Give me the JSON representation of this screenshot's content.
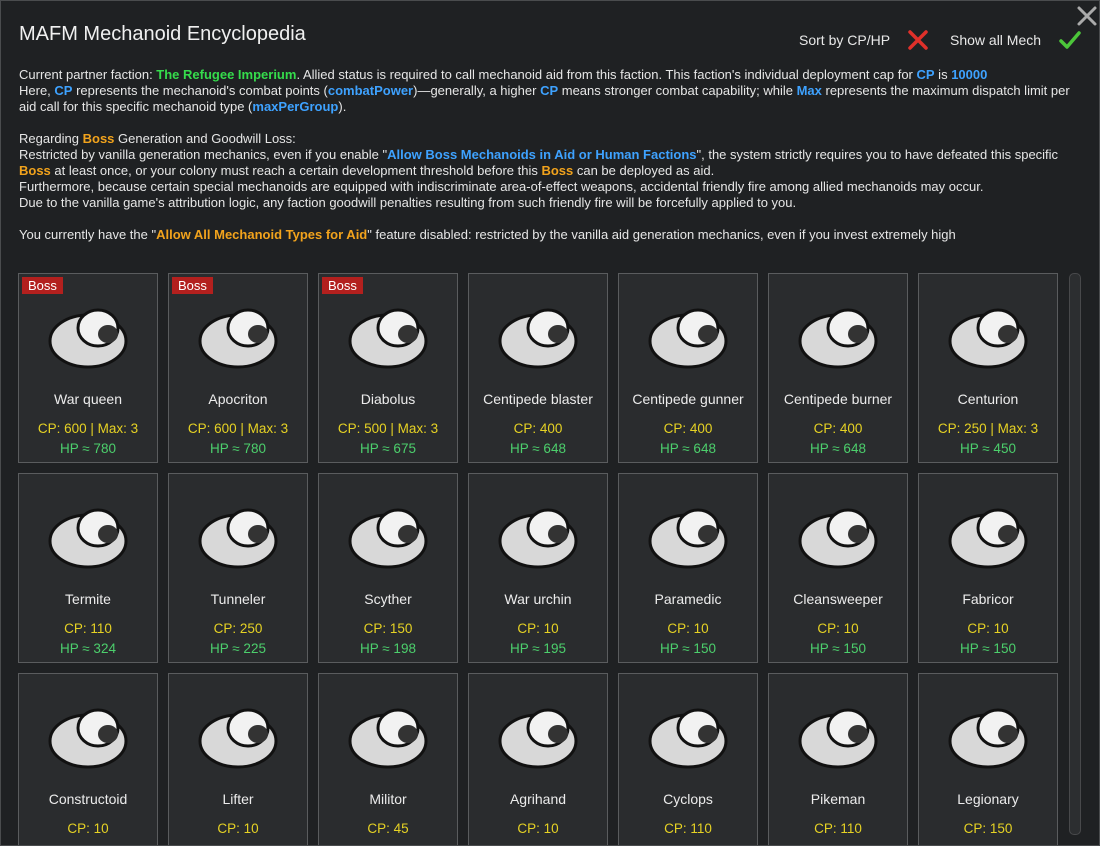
{
  "header": {
    "title": "MAFM Mechanoid Encyclopedia",
    "sort_button": "Sort by CP/HP",
    "show_all_button": "Show all Mech"
  },
  "paragraphs": [
    {
      "runs": [
        {
          "text": "Current partner faction: "
        },
        {
          "text": "The Refugee Imperium",
          "color": "#35dc4c"
        },
        {
          "text": ". Allied status is required to call mechanoid aid from this faction. This faction's individual deployment cap for "
        },
        {
          "text": "CP",
          "color": "#3ea2ff"
        },
        {
          "text": " is "
        },
        {
          "text": "10000",
          "color": "#3ea2ff"
        }
      ]
    },
    {
      "runs": [
        {
          "text": "Here, "
        },
        {
          "text": "CP",
          "color": "#3ea2ff"
        },
        {
          "text": " represents the mechanoid's combat points ("
        },
        {
          "text": "combatPower",
          "color": "#3ea2ff"
        },
        {
          "text": ")—generally, a higher "
        },
        {
          "text": "CP",
          "color": "#3ea2ff"
        },
        {
          "text": " means stronger combat capability; while "
        },
        {
          "text": "Max",
          "color": "#3ea2ff"
        },
        {
          "text": " represents the maximum dispatch limit per aid call for this specific mechanoid type ("
        },
        {
          "text": "maxPerGroup",
          "color": "#3ea2ff"
        },
        {
          "text": ")."
        }
      ]
    },
    {
      "gap": true,
      "runs": [
        {
          "text": "Regarding "
        },
        {
          "text": "Boss",
          "color": "#f2a31c"
        },
        {
          "text": " Generation and Goodwill Loss:"
        }
      ]
    },
    {
      "runs": [
        {
          "text": "Restricted by vanilla generation mechanics, even if you enable \""
        },
        {
          "text": "Allow Boss Mechanoids in Aid or Human Factions",
          "color": "#3ea2ff"
        },
        {
          "text": "\", the system strictly requires you to have defeated this specific "
        },
        {
          "text": "Boss",
          "color": "#f2a31c"
        },
        {
          "text": " at least once, or your colony must reach a certain development threshold before this "
        },
        {
          "text": "Boss",
          "color": "#f2a31c"
        },
        {
          "text": " can be deployed as aid."
        }
      ]
    },
    {
      "runs": [
        {
          "text": "Furthermore, because certain special mechanoids are equipped with indiscriminate area-of-effect weapons, accidental friendly fire among allied mechanoids may occur."
        }
      ]
    },
    {
      "runs": [
        {
          "text": "Due to the vanilla game's attribution logic, any faction goodwill penalties resulting from such friendly fire will be forcefully applied to you."
        }
      ]
    },
    {
      "gap": true,
      "nowrap": true,
      "runs": [
        {
          "text": "You currently have the \""
        },
        {
          "text": "Allow All Mechanoid Types for Aid",
          "color": "#f2a31c"
        },
        {
          "text": "\" feature disabled: restricted by the vanilla aid generation mechanics, even if you invest extremely high"
        }
      ]
    }
  ],
  "cards": [
    {
      "badge": "Boss",
      "name": "War queen",
      "cp": "CP: 600 | Max: 3",
      "hp": "HP ≈ 780"
    },
    {
      "badge": "Boss",
      "name": "Apocriton",
      "cp": "CP: 600 | Max: 3",
      "hp": "HP ≈ 780"
    },
    {
      "badge": "Boss",
      "name": "Diabolus",
      "cp": "CP: 500 | Max: 3",
      "hp": "HP ≈ 675"
    },
    {
      "name": "Centipede blaster",
      "cp": "CP: 400",
      "hp": "HP ≈ 648"
    },
    {
      "name": "Centipede gunner",
      "cp": "CP: 400",
      "hp": "HP ≈ 648"
    },
    {
      "name": "Centipede burner",
      "cp": "CP: 400",
      "hp": "HP ≈ 648"
    },
    {
      "name": "Centurion",
      "cp": "CP: 250 | Max: 3",
      "hp": "HP ≈ 450"
    },
    {
      "name": "Termite",
      "cp": "CP: 110",
      "hp": "HP ≈ 324"
    },
    {
      "name": "Tunneler",
      "cp": "CP: 250",
      "hp": "HP ≈ 225"
    },
    {
      "name": "Scyther",
      "cp": "CP: 150",
      "hp": "HP ≈ 198"
    },
    {
      "name": "War urchin",
      "cp": "CP: 10",
      "hp": "HP ≈ 195"
    },
    {
      "name": "Paramedic",
      "cp": "CP: 10",
      "hp": "HP ≈ 150"
    },
    {
      "name": "Cleansweeper",
      "cp": "CP: 10",
      "hp": "HP ≈ 150"
    },
    {
      "name": "Fabricor",
      "cp": "CP: 10",
      "hp": "HP ≈ 150"
    },
    {
      "name": "Constructoid",
      "cp": "CP: 10"
    },
    {
      "name": "Lifter",
      "cp": "CP: 10"
    },
    {
      "name": "Militor",
      "cp": "CP: 45"
    },
    {
      "name": "Agrihand",
      "cp": "CP: 10"
    },
    {
      "name": "Cyclops",
      "cp": "CP: 110"
    },
    {
      "name": "Pikeman",
      "cp": "CP: 110"
    },
    {
      "name": "Legionary",
      "cp": "CP: 150"
    }
  ]
}
